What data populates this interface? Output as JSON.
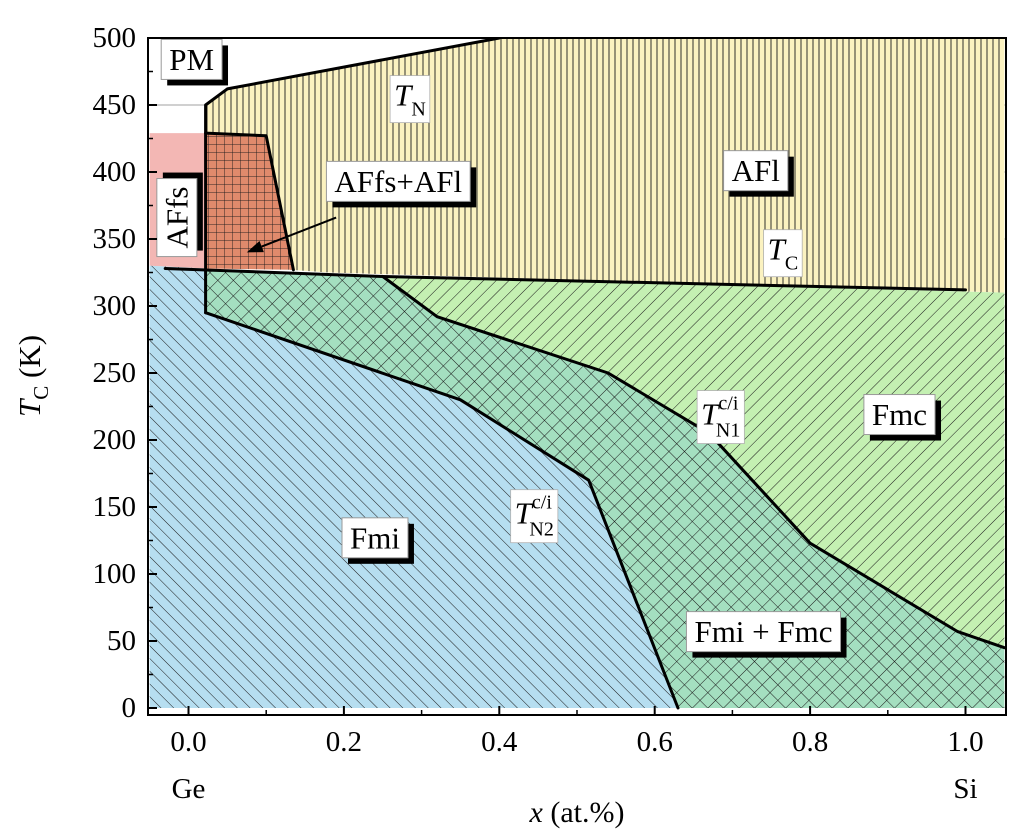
{
  "chart_data": {
    "type": "area",
    "title": "",
    "xlabel": "x (at.%)",
    "ylabel_main": "T",
    "ylabel_sub": "C",
    "ylabel_unit": " (K)",
    "xlim": [
      -0.05,
      1.05
    ],
    "ylim": [
      0,
      505
    ],
    "xticks": [
      0.0,
      0.2,
      0.4,
      0.6,
      0.8,
      1.0
    ],
    "xtick_labels": [
      "0.0",
      "0.2",
      "0.4",
      "0.6",
      "0.8",
      "1.0"
    ],
    "yticks": [
      0,
      50,
      100,
      150,
      200,
      250,
      300,
      350,
      400,
      450,
      500
    ],
    "ytick_labels": [
      "0",
      "50",
      "100",
      "150",
      "200",
      "250",
      "300",
      "350",
      "400",
      "450",
      "500"
    ],
    "x_end_labels": [
      {
        "x": 0.0,
        "text": "Ge"
      },
      {
        "x": 1.0,
        "text": "Si"
      }
    ],
    "grid": true,
    "colors": {
      "PM": "#ffffff",
      "AFfs": "#f3b7b4",
      "AFfs_AFl": "#e08a6c",
      "AFl": "#fbf2c0",
      "Fmc": "#c4f0b2",
      "Fmi_Fmc": "#a4dfc0",
      "Fmi": "#b6def0",
      "boundary": "#000000",
      "hatch": "#1a1a1a",
      "grid": "#b5b5b5"
    },
    "regions": [
      {
        "name": "AFl",
        "hatch": "vertical",
        "points": [
          [
            0.022,
            450
          ],
          [
            0.05,
            462
          ],
          [
            0.4,
            500
          ],
          [
            1.05,
            500
          ],
          [
            1.05,
            310
          ],
          [
            0.18,
            325
          ],
          [
            0.13,
            327
          ],
          [
            0.1,
            427
          ],
          [
            0.022,
            429
          ]
        ]
      },
      {
        "name": "AFfs",
        "hatch": "none",
        "points": [
          [
            -0.05,
            429
          ],
          [
            0.022,
            429
          ],
          [
            0.022,
            328
          ],
          [
            -0.05,
            330
          ]
        ]
      },
      {
        "name": "AFfs+AFl",
        "hatch": "grid",
        "points": [
          [
            0.022,
            429
          ],
          [
            0.1,
            427
          ],
          [
            0.135,
            327
          ],
          [
            0.022,
            328
          ]
        ]
      },
      {
        "name": "Fmc",
        "hatch": "diagonal-up",
        "points": [
          [
            0.25,
            322
          ],
          [
            1.05,
            310
          ],
          [
            1.05,
            45
          ],
          [
            0.99,
            57
          ],
          [
            0.8,
            123
          ],
          [
            0.67,
            205
          ],
          [
            0.54,
            250
          ],
          [
            0.32,
            292
          ]
        ]
      },
      {
        "name": "Fmi + Fmc",
        "hatch": "cross",
        "points": [
          [
            0.022,
            327
          ],
          [
            0.25,
            322
          ],
          [
            0.32,
            292
          ],
          [
            0.54,
            250
          ],
          [
            0.67,
            205
          ],
          [
            0.8,
            123
          ],
          [
            0.99,
            57
          ],
          [
            1.05,
            45
          ],
          [
            1.05,
            0
          ],
          [
            0.63,
            0
          ],
          [
            0.515,
            170
          ],
          [
            0.35,
            230
          ],
          [
            0.022,
            295
          ]
        ]
      },
      {
        "name": "Fmi",
        "hatch": "diagonal-down",
        "points": [
          [
            -0.05,
            330
          ],
          [
            0.022,
            328
          ],
          [
            0.022,
            295
          ],
          [
            0.35,
            230
          ],
          [
            0.515,
            170
          ],
          [
            0.63,
            0
          ],
          [
            -0.05,
            0
          ]
        ]
      }
    ],
    "boundaries": [
      {
        "name": "T_N",
        "points": [
          [
            0.022,
            295
          ],
          [
            0.022,
            450
          ],
          [
            0.05,
            462
          ],
          [
            0.4,
            500
          ]
        ]
      },
      {
        "name": "AFfs/AFl",
        "points": [
          [
            0.022,
            429
          ],
          [
            0.1,
            427
          ],
          [
            0.135,
            327
          ]
        ]
      },
      {
        "name": "T_C",
        "points": [
          [
            -0.03,
            328
          ],
          [
            0.25,
            322
          ],
          [
            1.0,
            312
          ]
        ]
      },
      {
        "name": "T_N1^c/i",
        "points": [
          [
            0.25,
            322
          ],
          [
            0.32,
            292
          ],
          [
            0.54,
            250
          ],
          [
            0.67,
            205
          ],
          [
            0.8,
            123
          ],
          [
            0.99,
            57
          ],
          [
            1.05,
            45
          ]
        ]
      },
      {
        "name": "T_N2^c/i",
        "points": [
          [
            0.022,
            295
          ],
          [
            0.35,
            230
          ],
          [
            0.515,
            170
          ],
          [
            0.63,
            0
          ]
        ]
      }
    ],
    "phase_labels": [
      {
        "text": "PM",
        "x": 0.004,
        "y": 484,
        "boxed": true
      },
      {
        "text": "AFl",
        "x": 0.73,
        "y": 401,
        "boxed": true
      },
      {
        "text": "AFfs+AFl",
        "x": 0.27,
        "y": 393,
        "boxed": true
      },
      {
        "text": "AFfs",
        "x": -0.015,
        "y": 366,
        "boxed": true,
        "rotate": true
      },
      {
        "text": "Fmc",
        "x": 0.915,
        "y": 219,
        "boxed": true
      },
      {
        "text": "Fmi",
        "x": 0.24,
        "y": 127,
        "boxed": true
      },
      {
        "text": "Fmi + Fmc",
        "x": 0.74,
        "y": 57,
        "boxed": true
      }
    ],
    "line_labels": [
      {
        "main": "T",
        "sub": "N",
        "sup": "",
        "x": 0.285,
        "y": 457
      },
      {
        "main": "T",
        "sub": "C",
        "sup": "",
        "x": 0.765,
        "y": 342
      },
      {
        "main": "T",
        "sub": "N1",
        "sup": "c/i",
        "x": 0.685,
        "y": 219
      },
      {
        "main": "T",
        "sub": "N2",
        "sup": "c/i",
        "x": 0.445,
        "y": 145
      }
    ],
    "arrows": [
      {
        "from": [
          0.19,
          366
        ],
        "to": [
          0.075,
          340
        ]
      }
    ]
  }
}
